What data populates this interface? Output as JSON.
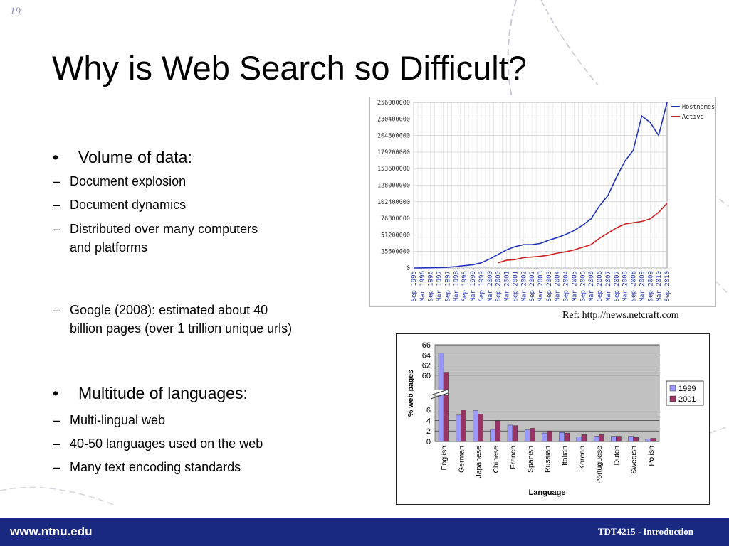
{
  "slide": {
    "number": "19",
    "title": "Why is Web Search so Difficult?",
    "bullets": [
      {
        "text": "Volume of data:",
        "sub": [
          "Document explosion",
          "Document dynamics",
          "Distributed over many computers\nand platforms"
        ]
      },
      {
        "sub": [
          "Google (2008): estimated about 40\nbillion pages (over 1 trillion unique urls)"
        ]
      },
      {
        "text": "Multitude of languages:",
        "sub": [
          "Multi-lingual web",
          "40-50 languages used on the web",
          "Many text encoding standards"
        ]
      }
    ],
    "bullet_symbol": "•",
    "dash_symbol": "–",
    "reference": "Ref: http://news.netcraft.com"
  },
  "footer": {
    "url": "www.ntnu.edu",
    "course": "TDT4215 - Introduction",
    "background": "#1a2980"
  },
  "chart_data": [
    {
      "type": "line",
      "title": "",
      "xlabel": "",
      "ylabel": "",
      "ylim": [
        0,
        256000000
      ],
      "yticks": [
        0,
        25600000,
        51200000,
        76800000,
        102400000,
        128000000,
        153600000,
        179200000,
        204800000,
        230400000,
        256000000
      ],
      "xticks": [
        "Sep 1995",
        "Mar 1996",
        "Sep 1996",
        "Mar 1997",
        "Sep 1997",
        "Mar 1998",
        "Sep 1998",
        "Mar 1999",
        "Sep 1999",
        "Mar 2000",
        "Sep 2000",
        "Mar 2001",
        "Sep 2001",
        "Mar 2002",
        "Sep 2002",
        "Mar 2003",
        "Sep 2003",
        "Mar 2004",
        "Sep 2004",
        "Mar 2005",
        "Sep 2005",
        "Mar 2006",
        "Sep 2006",
        "Mar 2007",
        "Sep 2007",
        "Mar 2008",
        "Sep 2008",
        "Mar 2009",
        "Sep 2009",
        "Mar 2010",
        "Sep 2010"
      ],
      "grid": true,
      "legend": "top-right",
      "series": [
        {
          "name": "Hostnames",
          "color": "#2233bb",
          "values": [
            20000,
            100000,
            300000,
            600000,
            1100000,
            2200000,
            3600000,
            5000000,
            8000000,
            14000000,
            21000000,
            28000000,
            33000000,
            36000000,
            36000000,
            38000000,
            43000000,
            47000000,
            52000000,
            58000000,
            66000000,
            76000000,
            96000000,
            112000000,
            140000000,
            165000000,
            182000000,
            235000000,
            225000000,
            205000000,
            256000000
          ]
        },
        {
          "name": "Active",
          "color": "#cc2222",
          "values": [
            null,
            null,
            null,
            null,
            null,
            null,
            null,
            null,
            null,
            null,
            8000000,
            12000000,
            13000000,
            16000000,
            17000000,
            18000000,
            20000000,
            23000000,
            25000000,
            28000000,
            32000000,
            36000000,
            46000000,
            54000000,
            62000000,
            68000000,
            70000000,
            72000000,
            76000000,
            86000000,
            100000000
          ]
        }
      ]
    },
    {
      "type": "bar",
      "title": "",
      "xlabel": "Language",
      "ylabel": "% web pages",
      "yticks": [
        0,
        2,
        4,
        6,
        60,
        62,
        64,
        66
      ],
      "axis_break": [
        7,
        59
      ],
      "grid": true,
      "legend": "right",
      "categories": [
        "English",
        "German",
        "Japanese",
        "Chinese",
        "French",
        "Spanish",
        "Russian",
        "Italian",
        "Korean",
        "Portuguese",
        "Dutch",
        "Swedish",
        "Polish"
      ],
      "series": [
        {
          "name": "1999",
          "color": "#9999ff",
          "values": [
            64.4,
            5.0,
            5.9,
            2.3,
            3.1,
            2.2,
            1.6,
            1.7,
            0.9,
            1.0,
            1.0,
            1.0,
            0.5
          ]
        },
        {
          "name": "2001",
          "color": "#993366",
          "values": [
            60.6,
            6.0,
            5.2,
            3.9,
            3.0,
            2.5,
            2.0,
            1.6,
            1.3,
            1.3,
            1.0,
            0.8,
            0.6
          ]
        }
      ]
    }
  ]
}
